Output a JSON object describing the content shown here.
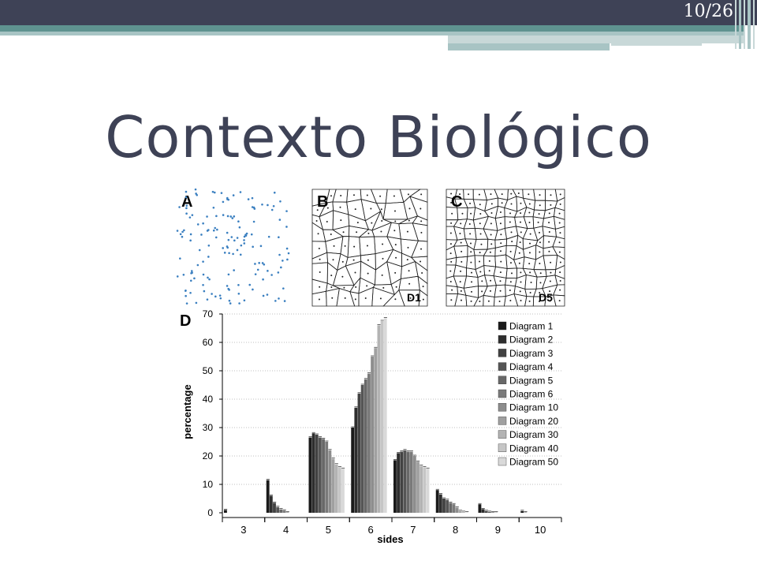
{
  "slide": {
    "number": "10/26",
    "title": "Contexto Biológico"
  },
  "colors": {
    "topbar": "#3e4256",
    "accent": "#5f9390",
    "accent_light": "#a8c4c4",
    "title": "#3e4256",
    "points": "#3a7fc0"
  },
  "panels": {
    "a_label": "A",
    "b_label": "B",
    "c_label": "C",
    "d_label": "D",
    "b_tag": "D1",
    "c_tag": "D5"
  },
  "chart_data": {
    "type": "bar",
    "title": "",
    "xlabel": "sides",
    "ylabel": "percentage",
    "ylim": [
      0,
      70
    ],
    "yticks": [
      0,
      10,
      20,
      30,
      40,
      50,
      60,
      70
    ],
    "grid": "horizontal dotted",
    "legend_position": "top-right",
    "categories": [
      "3",
      "4",
      "5",
      "6",
      "7",
      "8",
      "9",
      "10"
    ],
    "series": [
      {
        "name": "Diagram 1",
        "color": "#1a1a1a",
        "values": [
          1.0,
          11.5,
          26.5,
          30.0,
          18.5,
          8.0,
          3.0,
          0.6
        ]
      },
      {
        "name": "Diagram 2",
        "color": "#2e2e2e",
        "values": [
          0,
          6.0,
          28.0,
          37.0,
          21.0,
          6.5,
          1.3,
          0.1
        ]
      },
      {
        "name": "Diagram 3",
        "color": "#424242",
        "values": [
          0,
          3.5,
          27.5,
          42.0,
          21.5,
          5.0,
          0.6,
          0
        ]
      },
      {
        "name": "Diagram 4",
        "color": "#555555",
        "values": [
          0,
          2.0,
          26.5,
          45.0,
          22.0,
          4.5,
          0.3,
          0
        ]
      },
      {
        "name": "Diagram 5",
        "color": "#686868",
        "values": [
          0,
          1.2,
          26.0,
          47.0,
          21.5,
          3.5,
          0.2,
          0
        ]
      },
      {
        "name": "Diagram 6",
        "color": "#7a7a7a",
        "values": [
          0,
          0.8,
          25.0,
          49.0,
          21.5,
          3.0,
          0.1,
          0
        ]
      },
      {
        "name": "Diagram 10",
        "color": "#8d8d8d",
        "values": [
          0,
          0.2,
          22.0,
          55.0,
          20.0,
          1.8,
          0,
          0
        ]
      },
      {
        "name": "Diagram 20",
        "color": "#a0a0a0",
        "values": [
          0,
          0,
          19.0,
          58.0,
          18.0,
          0.6,
          0,
          0
        ]
      },
      {
        "name": "Diagram 30",
        "color": "#b3b3b3",
        "values": [
          0,
          0,
          17.0,
          66.0,
          16.5,
          0.3,
          0,
          0
        ]
      },
      {
        "name": "Diagram 40",
        "color": "#c6c6c6",
        "values": [
          0,
          0,
          16.0,
          67.5,
          16.0,
          0.1,
          0,
          0
        ]
      },
      {
        "name": "Diagram 50",
        "color": "#d9d9d9",
        "values": [
          0,
          0,
          15.5,
          68.5,
          15.5,
          0,
          0,
          0
        ]
      }
    ]
  }
}
